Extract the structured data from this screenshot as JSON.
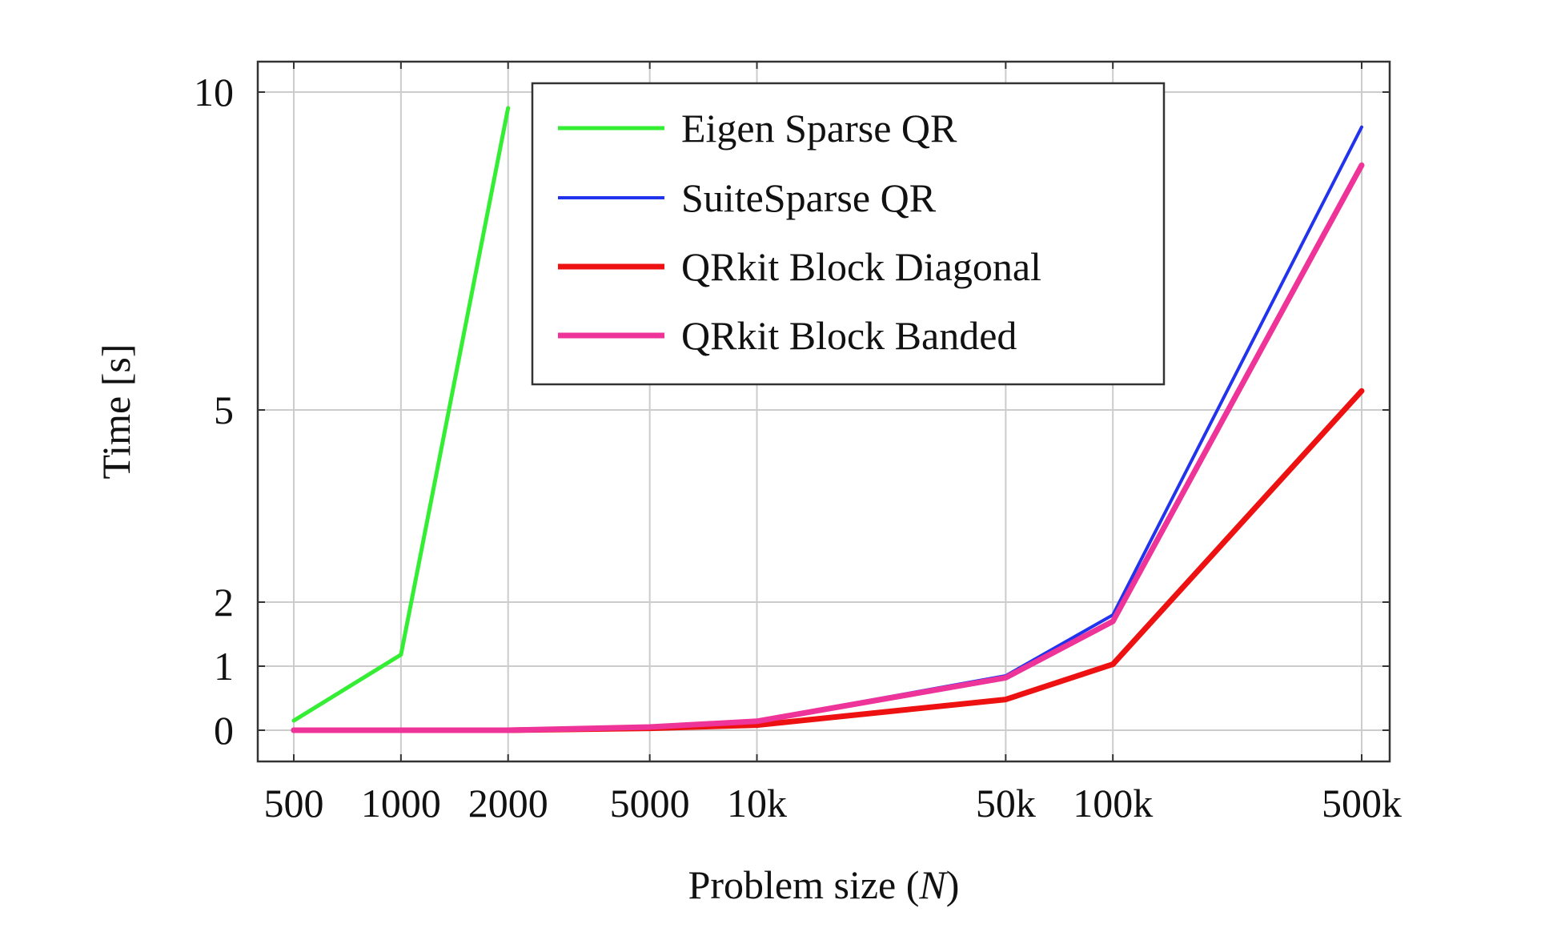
{
  "chart_data": {
    "type": "line",
    "xlabel_prefix": "Problem size (",
    "xlabel_var": "N",
    "xlabel_suffix": ")",
    "ylabel": "Time [s]",
    "x_scale": "log",
    "y_scale": "custom",
    "x_ticks": [
      500,
      1000,
      2000,
      5000,
      10000,
      50000,
      100000,
      500000
    ],
    "x_tick_labels": [
      "500",
      "1000",
      "2000",
      "5000",
      "10k",
      "50k",
      "100k",
      "500k"
    ],
    "y_ticks": [
      0,
      1,
      2,
      5,
      10
    ],
    "y_tick_labels": [
      "0",
      "1",
      "2",
      "5",
      "10"
    ],
    "xlim": [
      500,
      500000
    ],
    "ylim": [
      0,
      10
    ],
    "grid": true,
    "legend_position": "top-center",
    "series": [
      {
        "name": "Eigen Sparse QR",
        "color": "#33ee33",
        "x": [
          500,
          1000,
          2000
        ],
        "y": [
          0.15,
          1.18,
          9.75
        ]
      },
      {
        "name": "SuiteSparse QR",
        "color": "#2233ee",
        "x": [
          500,
          1000,
          2000,
          5000,
          10000,
          50000,
          100000,
          500000
        ],
        "y": [
          0.0,
          0.0,
          0.0,
          0.05,
          0.15,
          0.85,
          1.8,
          9.45
        ]
      },
      {
        "name": "QRkit Block Diagonal",
        "color": "#ee1111",
        "x": [
          500,
          1000,
          2000,
          5000,
          10000,
          50000,
          100000,
          500000
        ],
        "y": [
          0.0,
          0.0,
          0.0,
          0.03,
          0.08,
          0.48,
          1.03,
          5.3
        ]
      },
      {
        "name": "QRkit Block Banded",
        "color": "#ee3399",
        "x": [
          500,
          1000,
          2000,
          5000,
          10000,
          50000,
          100000,
          500000
        ],
        "y": [
          0.0,
          0.0,
          0.0,
          0.05,
          0.14,
          0.82,
          1.7,
          8.85
        ]
      }
    ]
  }
}
